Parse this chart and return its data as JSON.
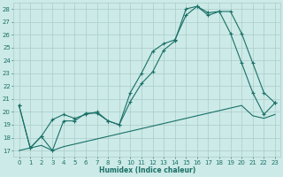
{
  "xlabel": "Humidex (Indice chaleur)",
  "bg_color": "#cceae7",
  "grid_color": "#aaccca",
  "line_color": "#1a7068",
  "xlim": [
    -0.5,
    23.5
  ],
  "ylim": [
    16.5,
    28.5
  ],
  "xticks": [
    0,
    1,
    2,
    3,
    4,
    5,
    6,
    7,
    8,
    9,
    10,
    11,
    12,
    13,
    14,
    15,
    16,
    17,
    18,
    19,
    20,
    21,
    22,
    23
  ],
  "yticks": [
    17,
    18,
    19,
    20,
    21,
    22,
    23,
    24,
    25,
    26,
    27,
    28
  ],
  "line1_x": [
    0,
    1,
    2,
    3,
    4,
    5,
    6,
    7,
    8,
    9,
    10,
    11,
    12,
    13,
    14,
    15,
    16,
    17,
    18,
    19,
    20,
    21,
    22,
    23
  ],
  "line1_y": [
    20.5,
    17.2,
    18.1,
    19.4,
    19.8,
    19.5,
    19.8,
    20.0,
    19.3,
    19.0,
    21.5,
    23.0,
    24.7,
    25.3,
    25.6,
    27.5,
    28.2,
    27.7,
    27.8,
    27.8,
    26.1,
    23.8,
    21.5,
    20.7
  ],
  "line2_x": [
    0,
    1,
    2,
    3,
    4,
    5,
    6,
    7,
    8,
    9,
    10,
    11,
    12,
    13,
    14,
    15,
    16,
    17,
    18,
    19,
    20,
    21,
    22,
    23
  ],
  "line2_y": [
    20.5,
    17.2,
    18.1,
    17.0,
    19.3,
    19.3,
    19.9,
    19.9,
    19.3,
    19.0,
    20.8,
    22.2,
    23.1,
    24.8,
    25.5,
    28.0,
    28.2,
    27.5,
    27.8,
    26.1,
    23.8,
    21.5,
    19.8,
    20.7
  ],
  "line3_x": [
    0,
    1,
    2,
    3,
    4,
    5,
    6,
    7,
    8,
    9,
    10,
    11,
    12,
    13,
    14,
    15,
    16,
    17,
    18,
    19,
    20,
    21,
    22,
    23
  ],
  "line3_y": [
    17.0,
    17.2,
    17.4,
    17.0,
    17.3,
    17.5,
    17.7,
    17.9,
    18.1,
    18.3,
    18.5,
    18.7,
    18.9,
    19.1,
    19.3,
    19.5,
    19.7,
    19.9,
    20.1,
    20.3,
    20.5,
    19.7,
    19.5,
    19.8
  ]
}
